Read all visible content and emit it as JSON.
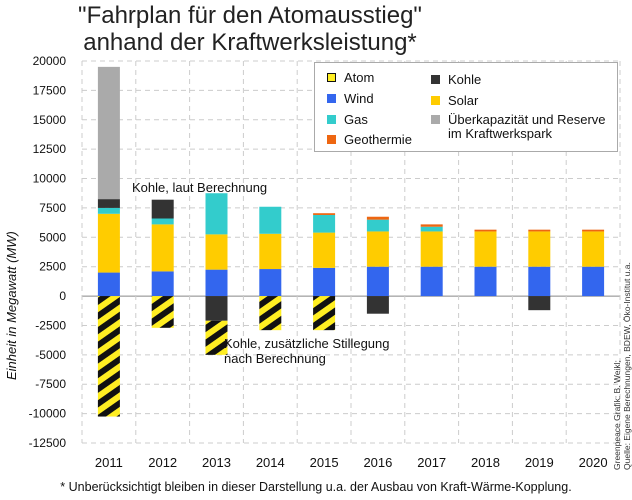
{
  "title": [
    "\"Fahrplan für den Atomausstieg\"",
    "anhand der Kraftwerksleistung*"
  ],
  "footnote": "* Unberücksichtigt bleiben in dieser Darstellung u.a. der Ausbau von Kraft-Wärme-Kopplung.",
  "source": [
    "Greenpeace Grafik: B. Weikl;",
    "Quelle: Eigene Berechnungen, BDEW, Öko-Institut u.a."
  ],
  "annotations": {
    "kohle_calc": "Kohle, laut Berechnung",
    "kohle_extra": [
      "Kohle, zusätzliche Stillegung",
      "nach Berechnung"
    ]
  },
  "chart_data": {
    "type": "bar",
    "stacked": true,
    "ylabel": "Einheit in Megawatt (MW)",
    "ylim": [
      -12500,
      20000
    ],
    "yticks": [
      -12500,
      -10000,
      -7500,
      -5000,
      -2500,
      0,
      2500,
      5000,
      7500,
      10000,
      12500,
      15000,
      17500,
      20000
    ],
    "ytick_labels": [
      "-12500",
      "-10000",
      "-7500",
      "-5000",
      "-2500",
      "0",
      "2500",
      "5000",
      "7500",
      "10000",
      "12500",
      "15000",
      "17500",
      "20000"
    ],
    "grid": true,
    "legend_position": "top-right",
    "categories": [
      "2011",
      "2012",
      "2013",
      "2014",
      "2015",
      "2016",
      "2017",
      "2018",
      "2019",
      "2020"
    ],
    "series": [
      {
        "name": "Wind",
        "color": "#3366ee",
        "values": [
          2000,
          2100,
          2250,
          2300,
          2400,
          2500,
          2500,
          2500,
          2500,
          2500
        ]
      },
      {
        "name": "Solar",
        "color": "#ffcc00",
        "values": [
          5000,
          4000,
          3000,
          3000,
          3000,
          3000,
          3000,
          3000,
          3000,
          3000
        ]
      },
      {
        "name": "Gas",
        "color": "#33cccc",
        "values": [
          500,
          500,
          3500,
          2300,
          1500,
          1000,
          400,
          0,
          0,
          0
        ]
      },
      {
        "name": "Geothermie",
        "color": "#ee6611",
        "values": [
          0,
          0,
          0,
          0,
          150,
          250,
          200,
          150,
          150,
          150
        ]
      },
      {
        "name": "Kohle",
        "color": "#333333",
        "values": [
          750,
          1600,
          -2100,
          0,
          0,
          -1500,
          0,
          0,
          -1200,
          0
        ]
      },
      {
        "name": "Überkapazität und Reserve im Kraftwerkspark",
        "color": "#aaaaaa",
        "values": [
          11250,
          0,
          0,
          0,
          0,
          0,
          0,
          0,
          0,
          0
        ]
      },
      {
        "name": "Atom",
        "color": "#ffee22",
        "pattern": "hatch",
        "values": [
          -10250,
          -2700,
          -2900,
          -2900,
          -2900,
          0,
          0,
          0,
          0,
          0
        ]
      }
    ],
    "legend": [
      {
        "name": "Atom",
        "color": "#ffee22"
      },
      {
        "name": "Wind",
        "color": "#3366ee"
      },
      {
        "name": "Gas",
        "color": "#33cccc"
      },
      {
        "name": "Geothermie",
        "color": "#ee6611"
      },
      {
        "name": "Kohle",
        "color": "#333333"
      },
      {
        "name": "Solar",
        "color": "#ffcc00"
      },
      {
        "name": "Überkapazität und Reserve",
        "name2": "im Kraftwerkspark",
        "color": "#aaaaaa"
      }
    ]
  }
}
